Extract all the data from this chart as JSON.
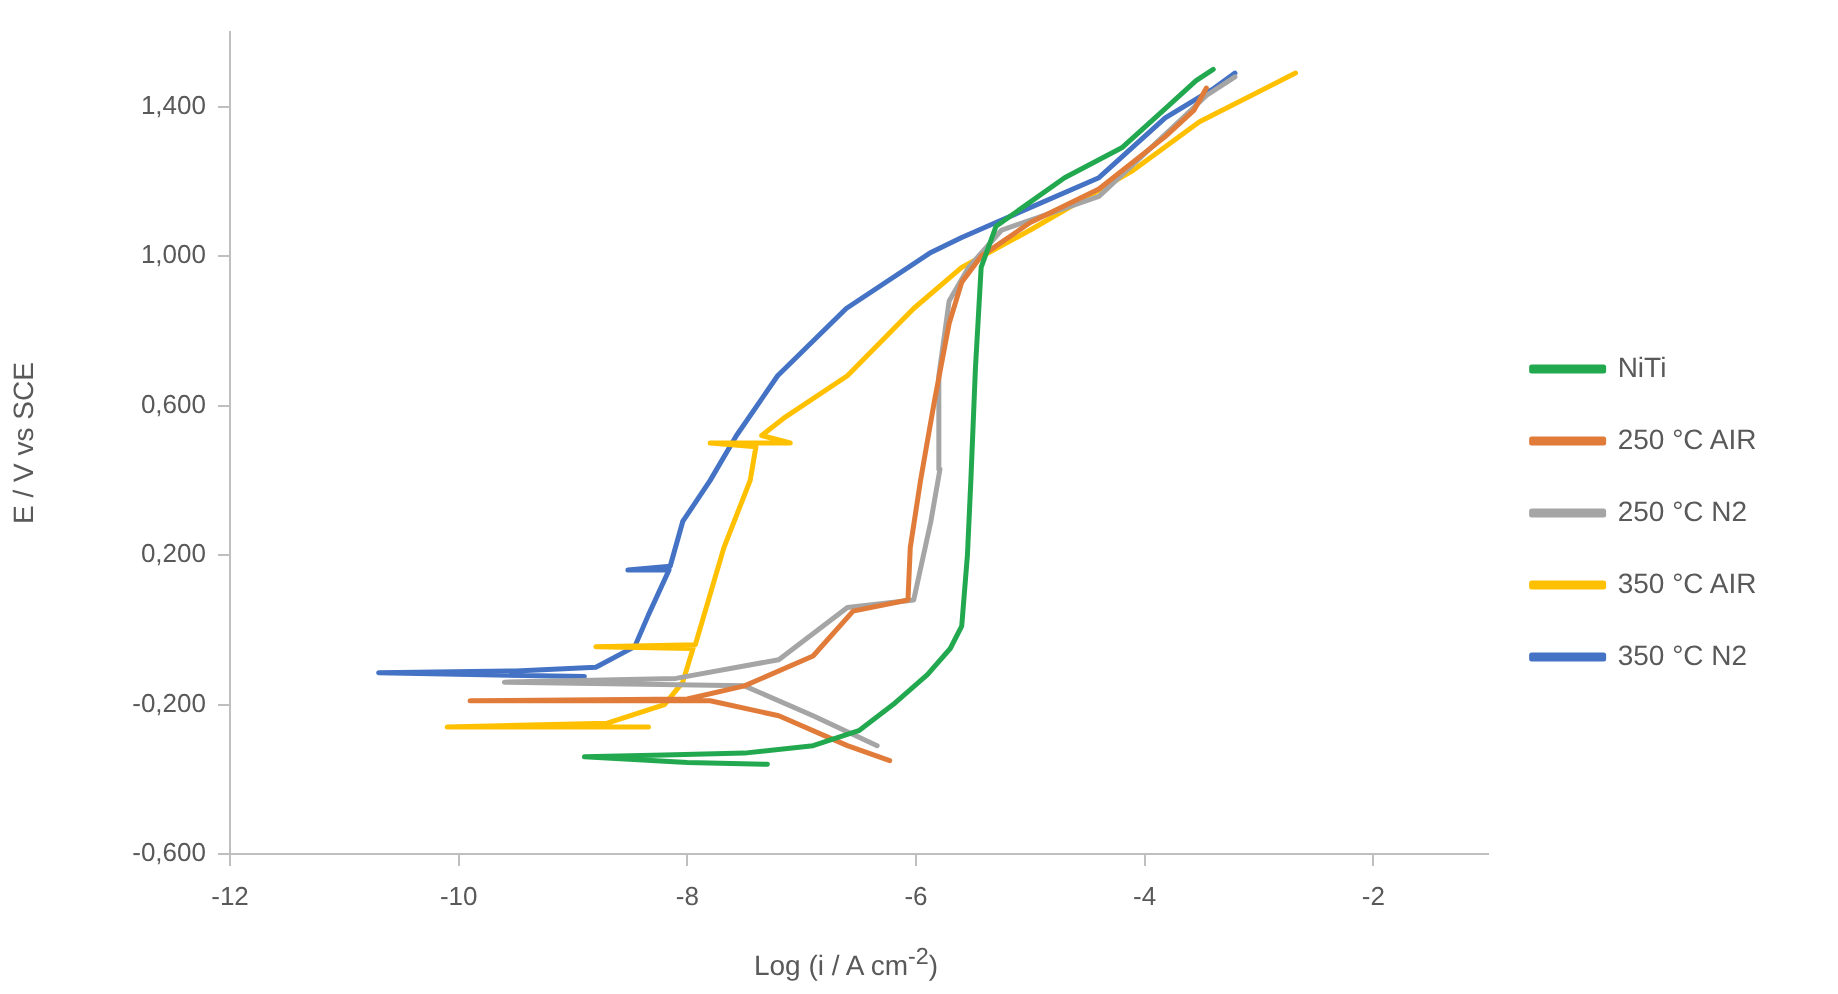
{
  "chart_data": {
    "type": "line",
    "xlabel": "Log (i / A cm$^{-2}$)",
    "ylabel": "E / V vs SCE",
    "xlim": [
      -12,
      -1
    ],
    "xticks": [
      -12,
      -10,
      -8,
      -6,
      -4,
      -2
    ],
    "ylim": [
      -0.6,
      1.6
    ],
    "yticks": [
      {
        "value": -0.6,
        "label": "-0,600"
      },
      {
        "value": -0.2,
        "label": "-0,200"
      },
      {
        "value": 0.2,
        "label": "0,200"
      },
      {
        "value": 0.6,
        "label": "0,600"
      },
      {
        "value": 1.0,
        "label": "1,000"
      },
      {
        "value": 1.4,
        "label": "1,400"
      }
    ],
    "grid": false,
    "legend": "right",
    "marker": "none",
    "line_style": "solid",
    "series": [
      {
        "name": "NiTi",
        "color": "#22a94f",
        "x": [
          -7.3,
          -8.0,
          -8.9,
          -8.2,
          -7.5,
          -6.9,
          -6.5,
          -6.2,
          -5.9,
          -5.7,
          -5.6,
          -5.55,
          -5.52,
          -5.48,
          -5.43,
          -5.3,
          -4.7,
          -4.2,
          -3.8,
          -3.55,
          -3.4
        ],
        "values": [
          -0.36,
          -0.355,
          -0.34,
          -0.335,
          -0.33,
          -0.31,
          -0.27,
          -0.2,
          -0.12,
          -0.05,
          0.01,
          0.2,
          0.4,
          0.7,
          0.97,
          1.08,
          1.21,
          1.29,
          1.4,
          1.47,
          1.5
        ]
      },
      {
        "name": "250 °C AIR",
        "color": "#e07b39",
        "x": [
          -6.23,
          -6.6,
          -7.2,
          -7.8,
          -9.9,
          -8.0,
          -7.5,
          -6.9,
          -6.55,
          -6.07,
          -6.05,
          -5.96,
          -5.84,
          -5.71,
          -5.6,
          -5.43,
          -5.0,
          -4.4,
          -3.82,
          -3.57,
          -3.46
        ],
        "values": [
          -0.35,
          -0.31,
          -0.23,
          -0.19,
          -0.19,
          -0.185,
          -0.15,
          -0.07,
          0.05,
          0.08,
          0.22,
          0.4,
          0.61,
          0.82,
          0.93,
          1.0,
          1.09,
          1.18,
          1.32,
          1.39,
          1.45
        ]
      },
      {
        "name": "250 °C N2",
        "color": "#a5a5a5",
        "x": [
          -6.34,
          -6.9,
          -7.5,
          -9.6,
          -8.1,
          -7.2,
          -6.6,
          -6.02,
          -5.87,
          -5.79,
          -5.8,
          -5.71,
          -5.54,
          -5.25,
          -4.4,
          -3.7,
          -3.46,
          -3.21
        ],
        "values": [
          -0.31,
          -0.23,
          -0.15,
          -0.14,
          -0.13,
          -0.08,
          0.06,
          0.08,
          0.29,
          0.43,
          0.68,
          0.88,
          0.97,
          1.07,
          1.16,
          1.36,
          1.43,
          1.48
        ]
      },
      {
        "name": "350 °C AIR",
        "color": "#ffc000",
        "x": [
          -8.34,
          -10.1,
          -8.7,
          -8.2,
          -8.04,
          -7.95,
          -8.8,
          -7.93,
          -7.68,
          -7.45,
          -7.4,
          -7.8,
          -7.1,
          -7.35,
          -7.14,
          -6.6,
          -6.02,
          -5.6,
          -5.0,
          -4.1,
          -3.52,
          -2.68
        ],
        "values": [
          -0.26,
          -0.26,
          -0.25,
          -0.2,
          -0.14,
          -0.05,
          -0.045,
          -0.04,
          0.22,
          0.4,
          0.49,
          0.5,
          0.5,
          0.52,
          0.57,
          0.68,
          0.86,
          0.97,
          1.07,
          1.23,
          1.36,
          1.49
        ]
      },
      {
        "name": "350 °C N2",
        "color": "#4472c4",
        "x": [
          -8.9,
          -10.7,
          -9.5,
          -8.8,
          -8.46,
          -8.34,
          -8.16,
          -8.52,
          -8.15,
          -8.04,
          -7.8,
          -7.57,
          -7.21,
          -6.61,
          -5.87,
          -5.6,
          -5.3,
          -4.4,
          -3.82,
          -3.39,
          -3.21
        ],
        "values": [
          -0.125,
          -0.115,
          -0.11,
          -0.1,
          -0.045,
          0.04,
          0.16,
          0.16,
          0.17,
          0.29,
          0.4,
          0.52,
          0.68,
          0.86,
          1.01,
          1.05,
          1.09,
          1.21,
          1.37,
          1.45,
          1.49
        ]
      }
    ]
  }
}
